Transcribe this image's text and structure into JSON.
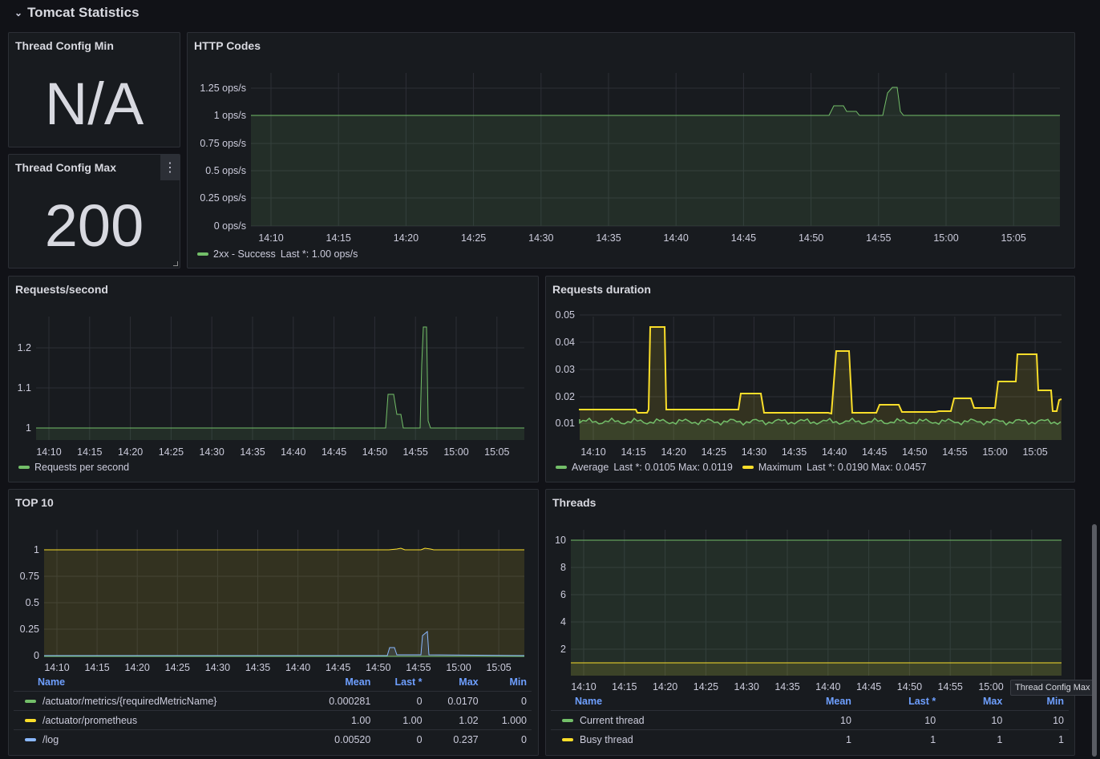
{
  "row": {
    "title": "Tomcat Statistics"
  },
  "colors": {
    "green": "#73bf69",
    "yellow": "#fade2a",
    "blue": "#8ab8ff",
    "header": "#6e9fff"
  },
  "thread_min": {
    "title": "Thread Config Min",
    "value": "N/A"
  },
  "thread_max": {
    "title": "Thread Config Max",
    "value": "200"
  },
  "time_ticks": [
    "14:10",
    "14:15",
    "14:20",
    "14:25",
    "14:30",
    "14:35",
    "14:40",
    "14:45",
    "14:50",
    "14:55",
    "15:00",
    "15:05"
  ],
  "http_codes": {
    "title": "HTTP Codes",
    "y_ticks": [
      "0 ops/s",
      "0.25 ops/s",
      "0.5 ops/s",
      "0.75 ops/s",
      "1 ops/s",
      "1.25 ops/s"
    ],
    "legend": {
      "name": "2xx - Success",
      "stat": "Last *: 1.00 ops/s"
    }
  },
  "requests_second": {
    "title": "Requests/second",
    "y_ticks": [
      "1",
      "1.1",
      "1.2"
    ],
    "legend": {
      "name": "Requests per second"
    }
  },
  "requests_duration": {
    "title": "Requests duration",
    "y_ticks": [
      "0.01",
      "0.02",
      "0.03",
      "0.04",
      "0.05"
    ],
    "legend": [
      {
        "name": "Average",
        "stat": "Last *: 0.0105  Max: 0.0119"
      },
      {
        "name": "Maximum",
        "stat": "Last *: 0.0190  Max: 0.0457"
      }
    ]
  },
  "top10": {
    "title": "TOP 10",
    "y_ticks": [
      "0",
      "0.25",
      "0.5",
      "0.75",
      "1"
    ],
    "columns": [
      "Name",
      "Mean",
      "Last *",
      "Max",
      "Min"
    ],
    "rows": [
      {
        "name": "/actuator/metrics/{requiredMetricName}",
        "mean": "0.000281",
        "last": "0",
        "max": "0.0170",
        "min": "0",
        "color": "#73bf69"
      },
      {
        "name": "/actuator/prometheus",
        "mean": "1.00",
        "last": "1.00",
        "max": "1.02",
        "min": "1.000",
        "color": "#fade2a"
      },
      {
        "name": "/log",
        "mean": "0.00520",
        "last": "0",
        "max": "0.237",
        "min": "0",
        "color": "#8ab8ff"
      }
    ]
  },
  "threads": {
    "title": "Threads",
    "y_ticks": [
      "2",
      "4",
      "6",
      "8",
      "10"
    ],
    "columns": [
      "Name",
      "Mean",
      "Last *",
      "Max",
      "Min"
    ],
    "rows": [
      {
        "name": "Current thread",
        "mean": "10",
        "last": "10",
        "max": "10",
        "min": "10",
        "color": "#73bf69"
      },
      {
        "name": "Busy thread",
        "mean": "1",
        "last": "1",
        "max": "1",
        "min": "1",
        "color": "#fade2a"
      }
    ]
  },
  "tooltip": "Thread Config Max"
}
